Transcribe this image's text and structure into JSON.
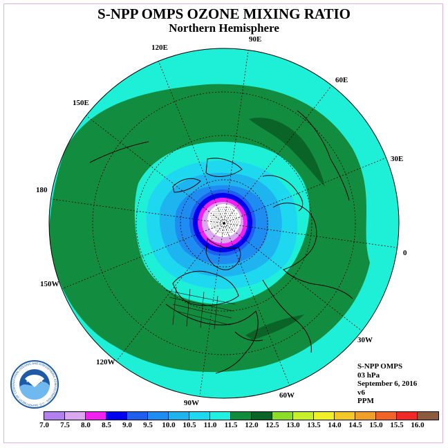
{
  "title": "S-NPP OMPS OZONE MIXING RATIO",
  "subtitle": "Northern Hemisphere",
  "longitude_labels": [
    "90E",
    "60E",
    "30E",
    "0",
    "30W",
    "60W",
    "90W",
    "120W",
    "150W",
    "180",
    "150E",
    "120E"
  ],
  "info": {
    "instrument": "S-NPP OMPS",
    "level": "03 hPa",
    "date": "September 6, 2016",
    "version": "v6",
    "units": "PPM"
  },
  "logo": {
    "text": "NOAA",
    "ring_text": "NATIONAL OCEANIC AND ATMOSPHERIC ADMINISTRATION · U.S. DEPARTMENT OF COMMERCE"
  },
  "colorbar": {
    "ticks": [
      "7.0",
      "7.5",
      "8.0",
      "8.5",
      "9.0",
      "9.5",
      "10.0",
      "10.5",
      "11.0",
      "11.5",
      "12.0",
      "12.5",
      "13.0",
      "13.5",
      "14.0",
      "14.5",
      "15.0",
      "15.5",
      "16.0"
    ],
    "colors": [
      "#b380f0",
      "#dba8f0",
      "#f020f0",
      "#0000f0",
      "#1e5ff0",
      "#1e8cf0",
      "#1eb4f0",
      "#1ed8f0",
      "#20f0e0",
      "#108c3c",
      "#0a6428",
      "#8cdc28",
      "#c8f028",
      "#f0f028",
      "#f0c828",
      "#f0a028",
      "#f06428",
      "#f02828",
      "#8c5a3c"
    ]
  },
  "map_legend": {
    "colors": {
      "outer": "#1ef0d8",
      "band_green": "#128c3e",
      "dark_green": "#0a6428",
      "light_cyan": "#1ed8f0",
      "sky": "#1eb4f0",
      "blue1": "#1e8cf0",
      "blue2": "#1e5ff0",
      "navy": "#0000f0",
      "magenta": "#f020f0",
      "lavender": "#dba8f0",
      "pole": "#ffffff"
    }
  }
}
